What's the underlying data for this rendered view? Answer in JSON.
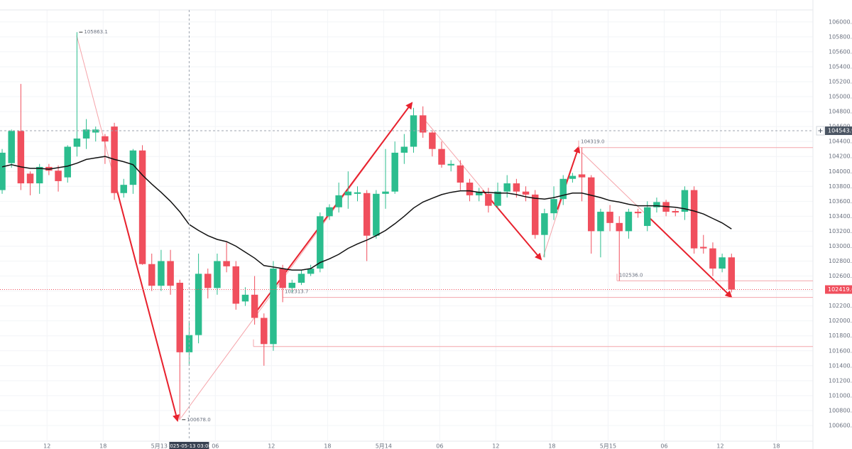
{
  "chart_data": {
    "type": "candlestick",
    "open": [
      103750,
      104110,
      104540,
      103970,
      103840,
      104060,
      104010,
      103920,
      104330,
      104440,
      104520,
      104470,
      104600,
      103710,
      103820,
      104280,
      102760,
      102470,
      102800,
      102510,
      101580,
      101810,
      102630,
      102440,
      102800,
      102730,
      102260,
      102350,
      102040,
      101690,
      102700,
      102440,
      102510,
      102630,
      102700,
      103400,
      103520,
      103680,
      103700,
      103710,
      103140,
      103700,
      103730,
      104250,
      104330,
      104750,
      104520,
      104300,
      104080,
      104080,
      103850,
      103680,
      103700,
      103540,
      103730,
      103840,
      103730,
      103690,
      103150,
      103440,
      103630,
      103900,
      103960,
      103920,
      103200,
      103460,
      103310,
      103200,
      103460,
      103270,
      103520,
      103590,
      103470,
      103460,
      103750,
      102990,
      102970,
      102700,
      102850
    ],
    "high": [
      104300,
      104560,
      105170,
      104000,
      104100,
      104100,
      104080,
      104350,
      105863.1,
      104700,
      104600,
      104500,
      104650,
      103900,
      104300,
      104350,
      102900,
      102950,
      102950,
      102550,
      102000,
      102900,
      102700,
      102900,
      103050,
      102800,
      102450,
      102600,
      102100,
      102800,
      102750,
      102550,
      102680,
      102750,
      103450,
      103560,
      103850,
      104000,
      103800,
      103750,
      103750,
      104300,
      104400,
      104500,
      104850,
      104870,
      104550,
      104400,
      104150,
      104150,
      103900,
      103780,
      103780,
      103850,
      103950,
      103900,
      103800,
      103750,
      103500,
      103800,
      103950,
      103980,
      104319,
      103950,
      103500,
      103550,
      103400,
      103500,
      103500,
      103600,
      103650,
      103620,
      103500,
      103800,
      103800,
      103150,
      103050,
      102900,
      102900
    ],
    "low": [
      103700,
      104050,
      103750,
      103680,
      103700,
      103950,
      103730,
      103850,
      104200,
      104300,
      104400,
      104100,
      103620,
      103650,
      103700,
      102750,
      102400,
      102400,
      102350,
      100678,
      101400,
      101700,
      102300,
      102350,
      102650,
      102150,
      102200,
      101950,
      101400,
      101600,
      102250,
      102380,
      102480,
      102600,
      102650,
      103350,
      103450,
      103500,
      103600,
      102800,
      103100,
      103500,
      103700,
      104100,
      104250,
      104450,
      104200,
      104050,
      104000,
      103750,
      103600,
      103600,
      103450,
      103500,
      103650,
      103650,
      103600,
      103100,
      102850,
      103350,
      103550,
      103850,
      103600,
      102900,
      102850,
      103200,
      102536,
      103100,
      103380,
      103200,
      103450,
      103400,
      103400,
      103350,
      102900,
      102900,
      102600,
      102650,
      102380
    ],
    "close": [
      104250,
      104540,
      103840,
      103840,
      104060,
      104010,
      103870,
      104330,
      104440,
      104560,
      104560,
      104400,
      103710,
      103820,
      104280,
      102760,
      102470,
      102800,
      102470,
      101580,
      101810,
      102630,
      102440,
      102800,
      102730,
      102230,
      102350,
      102040,
      101690,
      102700,
      102440,
      102510,
      102630,
      102700,
      103400,
      103520,
      103680,
      103730,
      103720,
      103140,
      103700,
      103730,
      104250,
      104330,
      104750,
      104520,
      104300,
      104090,
      104100,
      103850,
      103680,
      103730,
      103540,
      103730,
      103840,
      103730,
      103690,
      103150,
      103440,
      103630,
      103900,
      103940,
      103920,
      103200,
      103460,
      103310,
      103200,
      103460,
      103440,
      103520,
      103590,
      103460,
      103450,
      103750,
      102970,
      102970,
      102700,
      102850,
      102419.6
    ],
    "ma": {
      "color": "#111111",
      "values": [
        104060,
        104090,
        104060,
        104040,
        104040,
        104030,
        104050,
        104070,
        104110,
        104160,
        104180,
        104200,
        104160,
        104130,
        104090,
        103950,
        103830,
        103720,
        103600,
        103460,
        103290,
        103210,
        103140,
        103090,
        103060,
        103000,
        102920,
        102840,
        102740,
        102720,
        102700,
        102680,
        102680,
        102700,
        102780,
        102830,
        102890,
        102970,
        103030,
        103080,
        103140,
        103210,
        103300,
        103400,
        103510,
        103590,
        103640,
        103690,
        103720,
        103740,
        103740,
        103720,
        103720,
        103710,
        103710,
        103690,
        103660,
        103640,
        103630,
        103650,
        103680,
        103710,
        103710,
        103680,
        103650,
        103610,
        103590,
        103560,
        103540,
        103540,
        103540,
        103530,
        103520,
        103500,
        103470,
        103430,
        103370,
        103310,
        103230
      ]
    },
    "up_color": "#2bbd8e",
    "down_color": "#f04f5d",
    "xlim": [
      -0.23,
      86.71
    ],
    "ylim": [
      100400,
      106160
    ],
    "xticks": [
      {
        "value": 4.8,
        "label": "12"
      },
      {
        "value": 10.8,
        "label": "18"
      },
      {
        "value": 16.8,
        "label": "5月13"
      },
      {
        "value": 22.8,
        "label": "06"
      },
      {
        "value": 28.8,
        "label": "12"
      },
      {
        "value": 34.8,
        "label": "18"
      },
      {
        "value": 40.8,
        "label": "5月14"
      },
      {
        "value": 46.8,
        "label": "06"
      },
      {
        "value": 52.8,
        "label": "12"
      },
      {
        "value": 58.8,
        "label": "18"
      },
      {
        "value": 64.8,
        "label": "5月15"
      },
      {
        "value": 70.8,
        "label": "06"
      },
      {
        "value": 76.8,
        "label": "12"
      },
      {
        "value": 82.8,
        "label": "18"
      }
    ],
    "yticks": [
      {
        "value": 100600,
        "label": "100600.0"
      },
      {
        "value": 100800,
        "label": "100800.0"
      },
      {
        "value": 101000,
        "label": "101000.0"
      },
      {
        "value": 101200,
        "label": "101200.0"
      },
      {
        "value": 101400,
        "label": "101400.0"
      },
      {
        "value": 101600,
        "label": "101600.0"
      },
      {
        "value": 101800,
        "label": "101800.0"
      },
      {
        "value": 102000,
        "label": "102000.0"
      },
      {
        "value": 102200,
        "label": "102200.0"
      },
      {
        "value": 102400,
        "label": "102400.0"
      },
      {
        "value": 102600,
        "label": "102600.0"
      },
      {
        "value": 102800,
        "label": "102800.0"
      },
      {
        "value": 103000,
        "label": "103000.0"
      },
      {
        "value": 103200,
        "label": "103200.0"
      },
      {
        "value": 103400,
        "label": "103400.0"
      },
      {
        "value": 103600,
        "label": "103600.0"
      },
      {
        "value": 103800,
        "label": "103800.0"
      },
      {
        "value": 104000,
        "label": "104000.0"
      },
      {
        "value": 104200,
        "label": "104200.0"
      },
      {
        "value": 104400,
        "label": "104400.0"
      },
      {
        "value": 104600,
        "label": "104600.0"
      },
      {
        "value": 104800,
        "label": "104800.0"
      },
      {
        "value": 105000,
        "label": "105000.0"
      },
      {
        "value": 105200,
        "label": "105200.0"
      },
      {
        "value": 105400,
        "label": "105400.0"
      },
      {
        "value": 105600,
        "label": "105600.0"
      },
      {
        "value": 105800,
        "label": "105800.0"
      },
      {
        "value": 106000,
        "label": "106000.0"
      }
    ],
    "grid": true,
    "levels": [
      {
        "value": 104319.0,
        "label": "104319.0"
      },
      {
        "value": 102536.0,
        "label": "102536.0"
      },
      {
        "value": 102313.7,
        "label": "102313.7"
      },
      {
        "value": 101657
      }
    ],
    "pivots": [
      {
        "value": 105863.1,
        "label": "105863.1"
      },
      {
        "value": 100678.0,
        "label": "100678.0"
      }
    ],
    "price_line": {
      "value": 102419.6,
      "label": "102419.6"
    },
    "crosshair": {
      "index": 20,
      "price": {
        "value": 104543.9,
        "label": "104543.9"
      },
      "time_label": "2025-05-13 03:00"
    }
  }
}
